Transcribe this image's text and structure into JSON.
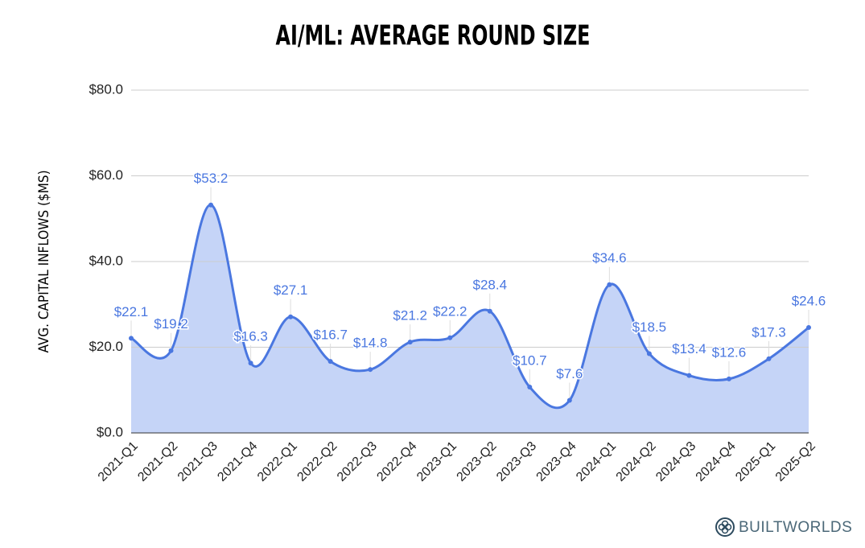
{
  "chart_data": {
    "type": "area",
    "title": "AI/ML: AVERAGE ROUND SIZE",
    "y_label": "AVG. CAPITAL INFLOWS ($MS)",
    "brand": "BUILTWORLDS",
    "categories": [
      "2021-Q1",
      "2021-Q2",
      "2021-Q3",
      "2021-Q4",
      "2022-Q1",
      "2022-Q2",
      "2022-Q3",
      "2022-Q4",
      "2023-Q1",
      "2023-Q2",
      "2023-Q3",
      "2023-Q4",
      "2024-Q1",
      "2024-Q2",
      "2024-Q3",
      "2024-Q4",
      "2025-Q1",
      "2025-Q2"
    ],
    "values": [
      22.1,
      19.2,
      53.2,
      16.3,
      27.1,
      16.7,
      14.8,
      21.2,
      22.2,
      28.4,
      10.7,
      7.6,
      34.6,
      18.5,
      13.4,
      12.6,
      17.3,
      24.6
    ],
    "value_labels": [
      "$22.1",
      "$19.2",
      "$53.2",
      "$16.3",
      "$27.1",
      "$16.7",
      "$14.8",
      "$21.2",
      "$22.2",
      "$28.4",
      "$10.7",
      "$7.6",
      "$34.6",
      "$18.5",
      "$13.4",
      "$12.6",
      "$17.3",
      "$24.6"
    ],
    "color": "#4a77e0",
    "fill_color": "#c5d4f7",
    "ylim": [
      0,
      80
    ],
    "yticks": [
      {
        "value": 0,
        "label": "$0.0"
      },
      {
        "value": 20,
        "label": "$20.0"
      },
      {
        "value": 40,
        "label": "$40.0"
      },
      {
        "value": 60,
        "label": "$60.0"
      },
      {
        "value": 80,
        "label": "$80.0"
      }
    ],
    "grid": true
  }
}
